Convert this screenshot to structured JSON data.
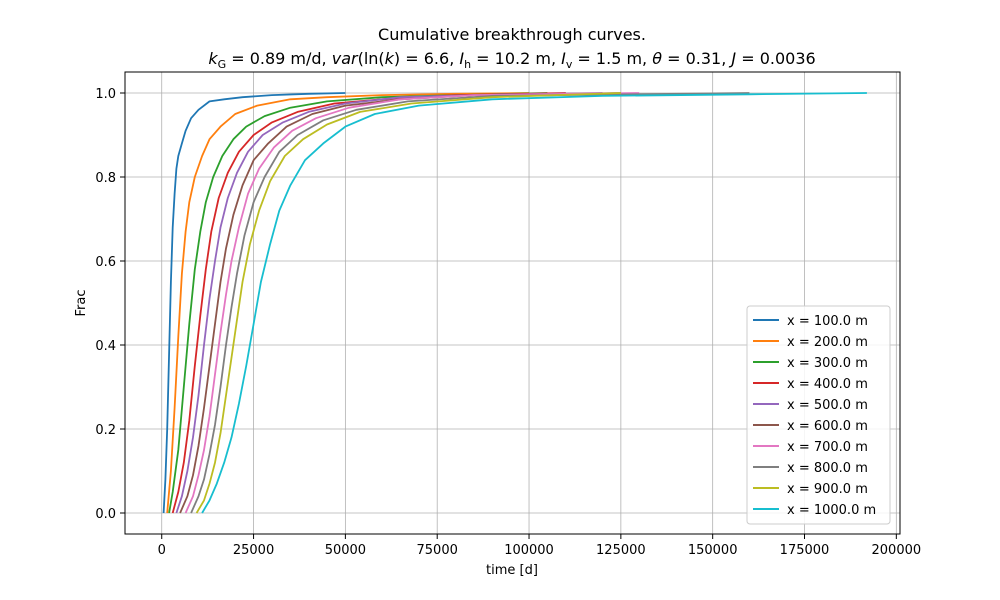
{
  "chart_data": {
    "type": "line",
    "title": "Cumulative breakthrough curves.",
    "subtitle": "k_G = 0.89 m/d, var(ln(k) = 6.6, I_h = 10.2 m, I_v = 1.5 m, θ = 0.31, J = 0.0036",
    "subtitle_parts": [
      {
        "text": "k"
      },
      {
        "text": "G",
        "sub": true
      },
      {
        "text": " = 0.89 m/d, "
      },
      {
        "text": "var"
      },
      {
        "text": "(ln("
      },
      {
        "text": "k"
      },
      {
        "text": ") = 6.6, "
      },
      {
        "text": "I"
      },
      {
        "text": "h",
        "sub": true
      },
      {
        "text": " = 10.2 m, "
      },
      {
        "text": "I"
      },
      {
        "text": "v",
        "sub": true
      },
      {
        "text": " = 1.5 m, "
      },
      {
        "text": "θ"
      },
      {
        "text": " = 0.31, "
      },
      {
        "text": "J"
      },
      {
        "text": " = 0.0036"
      }
    ],
    "xlabel": "time [d]",
    "ylabel": "Frac",
    "xlim": [
      -10000,
      201000
    ],
    "ylim": [
      -0.05,
      1.05
    ],
    "x_ticks": [
      0,
      25000,
      50000,
      75000,
      100000,
      125000,
      150000,
      175000,
      200000
    ],
    "y_ticks": [
      0.0,
      0.2,
      0.4,
      0.6,
      0.8,
      1.0
    ],
    "grid": true,
    "legend_position": "lower-right",
    "series": [
      {
        "name": "x = 100.0 m",
        "color": "#1f77b4",
        "x": [
          500,
          1000,
          1500,
          2000,
          2500,
          3000,
          3500,
          4000,
          4500,
          5500,
          6500,
          8000,
          10000,
          13000,
          17000,
          22000,
          30000,
          40000,
          50000
        ],
        "y": [
          0.0,
          0.08,
          0.2,
          0.38,
          0.55,
          0.68,
          0.76,
          0.82,
          0.85,
          0.88,
          0.91,
          0.94,
          0.96,
          0.98,
          0.985,
          0.99,
          0.995,
          0.998,
          1.0
        ]
      },
      {
        "name": "x = 200.0 m",
        "color": "#ff7f0e",
        "x": [
          1500,
          2500,
          3500,
          4500,
          5500,
          6500,
          7500,
          9000,
          11000,
          13000,
          16000,
          20000,
          26000,
          35000,
          45000,
          60000,
          80000,
          100000
        ],
        "y": [
          0.0,
          0.1,
          0.25,
          0.42,
          0.57,
          0.67,
          0.74,
          0.8,
          0.85,
          0.89,
          0.92,
          0.95,
          0.97,
          0.985,
          0.99,
          0.995,
          0.998,
          1.0
        ]
      },
      {
        "name": "x = 300.0 m",
        "color": "#2ca02c",
        "x": [
          2000,
          3000,
          4500,
          6000,
          7500,
          9000,
          10500,
          12000,
          14000,
          16500,
          19500,
          23000,
          28000,
          35000,
          45000,
          60000,
          80000,
          105000
        ],
        "y": [
          0.0,
          0.05,
          0.15,
          0.3,
          0.45,
          0.58,
          0.67,
          0.74,
          0.8,
          0.85,
          0.89,
          0.92,
          0.945,
          0.965,
          0.98,
          0.99,
          0.995,
          1.0
        ]
      },
      {
        "name": "x = 400.0 m",
        "color": "#d62728",
        "x": [
          3000,
          4500,
          6000,
          7500,
          9000,
          10500,
          12000,
          13500,
          15500,
          18000,
          21000,
          25000,
          30000,
          37000,
          47000,
          60000,
          80000,
          110000
        ],
        "y": [
          0.0,
          0.05,
          0.12,
          0.22,
          0.35,
          0.47,
          0.58,
          0.67,
          0.75,
          0.81,
          0.86,
          0.9,
          0.93,
          0.955,
          0.975,
          0.985,
          0.995,
          1.0
        ]
      },
      {
        "name": "x = 500.0 m",
        "color": "#9467bd",
        "x": [
          4000,
          5500,
          7000,
          8500,
          10000,
          11500,
          13000,
          14500,
          16000,
          18000,
          20500,
          23500,
          27500,
          33000,
          40000,
          50000,
          65000,
          85000,
          120000
        ],
        "y": [
          0.0,
          0.04,
          0.1,
          0.18,
          0.28,
          0.4,
          0.51,
          0.6,
          0.68,
          0.75,
          0.81,
          0.86,
          0.9,
          0.93,
          0.955,
          0.975,
          0.99,
          0.995,
          1.0
        ]
      },
      {
        "name": "x = 600.0 m",
        "color": "#8c564b",
        "x": [
          5000,
          7000,
          8500,
          10000,
          11500,
          13000,
          14500,
          16000,
          17500,
          19500,
          22000,
          25000,
          29000,
          34000,
          41000,
          50000,
          65000,
          85000,
          125000
        ],
        "y": [
          0.0,
          0.04,
          0.09,
          0.16,
          0.25,
          0.35,
          0.45,
          0.55,
          0.63,
          0.71,
          0.78,
          0.84,
          0.88,
          0.92,
          0.95,
          0.97,
          0.985,
          0.995,
          1.0
        ]
      },
      {
        "name": "x = 700.0 m",
        "color": "#e377c2",
        "x": [
          6500,
          8500,
          10000,
          11500,
          13000,
          14500,
          16000,
          17500,
          19000,
          21000,
          23500,
          26500,
          30500,
          35500,
          42000,
          51000,
          65000,
          85000,
          130000
        ],
        "y": [
          0.0,
          0.04,
          0.09,
          0.15,
          0.23,
          0.33,
          0.43,
          0.52,
          0.6,
          0.68,
          0.76,
          0.82,
          0.87,
          0.91,
          0.94,
          0.965,
          0.985,
          0.995,
          1.0
        ]
      },
      {
        "name": "x = 800.0 m",
        "color": "#7f7f7f",
        "x": [
          8000,
          10000,
          11500,
          13000,
          14500,
          16000,
          17500,
          19000,
          20500,
          22500,
          25000,
          28000,
          32000,
          37000,
          44000,
          53000,
          67000,
          90000,
          160000
        ],
        "y": [
          0.0,
          0.04,
          0.08,
          0.14,
          0.21,
          0.3,
          0.4,
          0.49,
          0.57,
          0.66,
          0.74,
          0.8,
          0.86,
          0.9,
          0.935,
          0.96,
          0.98,
          0.993,
          1.0
        ]
      },
      {
        "name": "x = 900.0 m",
        "color": "#bcbd22",
        "x": [
          9500,
          11500,
          13000,
          14500,
          16000,
          17500,
          19000,
          20500,
          22000,
          24000,
          26500,
          29500,
          33500,
          38500,
          45000,
          54000,
          68000,
          90000,
          125000
        ],
        "y": [
          0.0,
          0.03,
          0.07,
          0.12,
          0.19,
          0.28,
          0.37,
          0.46,
          0.55,
          0.64,
          0.72,
          0.79,
          0.85,
          0.89,
          0.925,
          0.955,
          0.975,
          0.99,
          1.0
        ]
      },
      {
        "name": "x = 1000.0 m",
        "color": "#17becf",
        "x": [
          11000,
          13000,
          15000,
          17000,
          19000,
          21000,
          23000,
          25000,
          27000,
          29500,
          32000,
          35000,
          39000,
          44000,
          50000,
          58000,
          70000,
          90000,
          120000,
          160000,
          192000
        ],
        "y": [
          0.0,
          0.03,
          0.07,
          0.12,
          0.18,
          0.26,
          0.35,
          0.45,
          0.55,
          0.64,
          0.72,
          0.78,
          0.84,
          0.88,
          0.92,
          0.95,
          0.97,
          0.985,
          0.993,
          0.997,
          1.0
        ]
      }
    ]
  }
}
